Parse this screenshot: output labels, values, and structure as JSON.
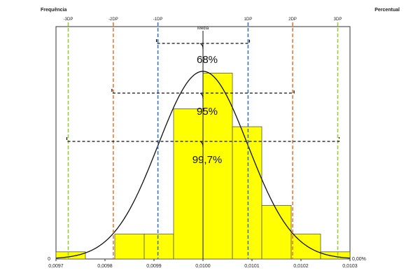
{
  "chart_data": {
    "type": "bar",
    "left_axis_label": "Frequência",
    "right_axis_label": "Percentual",
    "y_left_zero_label": "0",
    "y_right_zero_label": "0,00%",
    "xlim": [
      0.0097,
      0.0103
    ],
    "x_ticks": [
      {
        "value": 0.0097,
        "label": "0,0097"
      },
      {
        "value": 0.0098,
        "label": "0,0098"
      },
      {
        "value": 0.0099,
        "label": "0,0099"
      },
      {
        "value": 0.01,
        "label": "0,0100"
      },
      {
        "value": 0.0101,
        "label": "0,0101"
      },
      {
        "value": 0.0102,
        "label": "0,0102"
      },
      {
        "value": 0.0103,
        "label": "0,0103"
      }
    ],
    "bins": [
      {
        "x0": 0.0097,
        "x1": 0.00976,
        "value": 2
      },
      {
        "x0": 0.00982,
        "x1": 0.00988,
        "value": 7
      },
      {
        "x0": 0.00988,
        "x1": 0.00994,
        "value": 7
      },
      {
        "x0": 0.00994,
        "x1": 0.01,
        "value": 42
      },
      {
        "x0": 0.01,
        "x1": 0.01006,
        "value": 52
      },
      {
        "x0": 0.01006,
        "x1": 0.01012,
        "value": 37
      },
      {
        "x0": 0.01012,
        "x1": 0.01018,
        "value": 15
      },
      {
        "x0": 0.01018,
        "x1": 0.01024,
        "value": 7
      },
      {
        "x0": 0.01024,
        "x1": 0.0103,
        "value": 2
      }
    ],
    "ylim": [
      0,
      65
    ],
    "normal_curve": {
      "mean": 0.01,
      "sd": 9.17e-05,
      "peak": 52.5
    },
    "sd_lines": [
      {
        "label": "-3DP",
        "value": 0.009725,
        "color": "#9ACD32"
      },
      {
        "label": "-2DP",
        "value": 0.009817,
        "color": "#F07A2E"
      },
      {
        "label": "-1DP",
        "value": 0.009908,
        "color": "#3A78C2"
      },
      {
        "label": "Média",
        "value": 0.01,
        "color": "#111111"
      },
      {
        "label": "1DP",
        "value": 0.010092,
        "color": "#3A78C2"
      },
      {
        "label": "2DP",
        "value": 0.010183,
        "color": "#F07A2E"
      },
      {
        "label": "3DP",
        "value": 0.010275,
        "color": "#9ACD32"
      }
    ],
    "intervals": [
      {
        "label": "68%",
        "from": 0.009908,
        "to": 0.010092
      },
      {
        "label": "95%",
        "from": 0.009817,
        "to": 0.010183
      },
      {
        "label": "99,7%",
        "from": 0.009725,
        "to": 0.010275
      }
    ],
    "colors": {
      "bar_fill": "#FFFF00",
      "bar_stroke": "#555555",
      "curve": "#111111"
    }
  }
}
